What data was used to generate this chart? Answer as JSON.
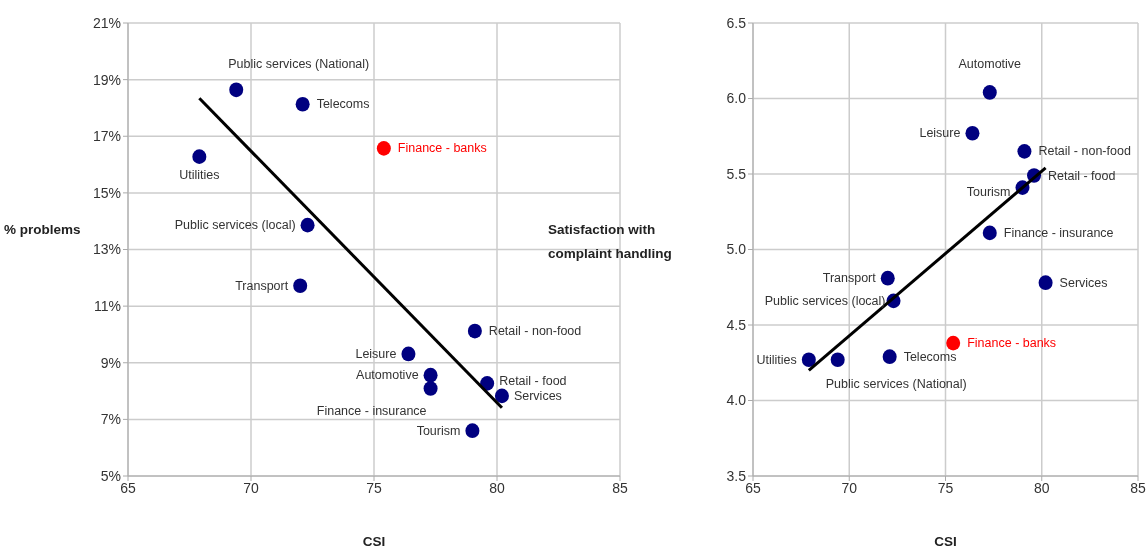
{
  "chart_data": [
    {
      "type": "scatter",
      "xlabel": "CSI",
      "ylabel": "% problems",
      "xlim": [
        65,
        85
      ],
      "xticks": [
        65,
        70,
        75,
        80,
        85
      ],
      "ylim": [
        5,
        21
      ],
      "yticks": [
        {
          "value": 5,
          "label": "5%"
        },
        {
          "value": 7,
          "label": "7%"
        },
        {
          "value": 9,
          "label": "9%"
        },
        {
          "value": 11,
          "label": "11%"
        },
        {
          "value": 13,
          "label": "13%"
        },
        {
          "value": 15,
          "label": "15%"
        },
        {
          "value": 17,
          "label": "17%"
        },
        {
          "value": 19,
          "label": "19%"
        },
        {
          "value": 21,
          "label": "21%"
        }
      ],
      "grid": true,
      "series": [
        {
          "marker": "circle",
          "x": [
            69.4,
            72.1,
            75.4,
            67.9,
            72.3,
            72.0,
            79.1,
            76.4,
            77.3,
            77.3,
            79.6,
            80.2,
            79.0
          ],
          "values": [
            18.64,
            18.13,
            16.57,
            16.28,
            13.86,
            11.72,
            10.12,
            9.31,
            8.56,
            8.09,
            8.27,
            7.83,
            6.6
          ],
          "colors": [
            "#000080",
            "#000080",
            "#ff0000",
            "#000080",
            "#000080",
            "#000080",
            "#000080",
            "#000080",
            "#000080",
            "#000080",
            "#000080",
            "#000080",
            "#000080"
          ]
        },
        {
          "type": "line",
          "x": [
            67.9,
            80.2
          ],
          "values": [
            18.34,
            7.41
          ],
          "color": "#000000"
        }
      ],
      "annotations": [
        {
          "text": "Public services (National)",
          "x": 69.4,
          "y": 18.64
        },
        {
          "text": "Telecoms",
          "x": 72.1,
          "y": 18.13
        },
        {
          "text": "Finance - banks",
          "x": 75.4,
          "y": 16.57
        },
        {
          "text": "Utilities",
          "x": 67.9,
          "y": 16.28
        },
        {
          "text": "Public services (local)",
          "x": 72.3,
          "y": 13.86
        },
        {
          "text": "Transport",
          "x": 72.0,
          "y": 11.72
        },
        {
          "text": "Retail - non-food",
          "x": 79.1,
          "y": 10.12
        },
        {
          "text": "Leisure",
          "x": 76.4,
          "y": 9.31
        },
        {
          "text": "Automotive",
          "x": 77.3,
          "y": 8.56
        },
        {
          "text": "Finance - insurance",
          "x": 77.3,
          "y": 8.09
        },
        {
          "text": "Retail - food",
          "x": 79.6,
          "y": 8.27
        },
        {
          "text": "Services",
          "x": 80.2,
          "y": 7.83
        },
        {
          "text": "Tourism",
          "x": 79.0,
          "y": 6.6
        }
      ]
    },
    {
      "type": "scatter",
      "xlabel": "CSI",
      "ylabel": "Satisfaction with complaint handling",
      "xlim": [
        65,
        85
      ],
      "xticks": [
        65,
        70,
        75,
        80,
        85
      ],
      "ylim": [
        3.5,
        6.5
      ],
      "yticks": [
        3.5,
        {
          "value": 4,
          "label": "4.0"
        },
        4.5,
        {
          "value": 5,
          "label": "5.0"
        },
        5.5,
        {
          "value": 6,
          "label": "6.0"
        },
        6.5
      ],
      "grid": true,
      "series": [
        {
          "marker": "circle",
          "x": [
            69.4,
            72.1,
            75.4,
            67.9,
            72.3,
            72.0,
            79.1,
            76.4,
            77.3,
            77.3,
            79.6,
            80.2,
            79.0
          ],
          "values": [
            4.27,
            4.29,
            4.38,
            4.27,
            4.66,
            4.81,
            5.65,
            5.77,
            6.04,
            5.11,
            5.49,
            4.78,
            5.41
          ],
          "colors": [
            "#000080",
            "#000080",
            "#ff0000",
            "#000080",
            "#000080",
            "#000080",
            "#000080",
            "#000080",
            "#000080",
            "#000080",
            "#000080",
            "#000080",
            "#000080"
          ]
        },
        {
          "type": "line",
          "x": [
            67.9,
            80.2
          ],
          "values": [
            4.2,
            5.54
          ],
          "color": "#000000"
        }
      ],
      "annotations": [
        {
          "text": "Public services (National)",
          "x": 69.4,
          "y": 4.27
        },
        {
          "text": "Telecoms",
          "x": 72.1,
          "y": 4.29
        },
        {
          "text": "Finance - banks",
          "x": 75.4,
          "y": 4.38
        },
        {
          "text": "Utilities",
          "x": 67.9,
          "y": 4.27
        },
        {
          "text": "Public services (local)",
          "x": 72.3,
          "y": 4.66
        },
        {
          "text": "Transport",
          "x": 72.0,
          "y": 4.81
        },
        {
          "text": "Retail - non-food",
          "x": 79.1,
          "y": 5.65
        },
        {
          "text": "Leisure",
          "x": 76.4,
          "y": 5.77
        },
        {
          "text": "Automotive",
          "x": 77.3,
          "y": 6.04
        },
        {
          "text": "Finance - insurance",
          "x": 77.3,
          "y": 5.11
        },
        {
          "text": "Retail - food",
          "x": 79.6,
          "y": 5.49
        },
        {
          "text": "Services",
          "x": 80.2,
          "y": 4.78
        },
        {
          "text": "Tourism",
          "x": 79.0,
          "y": 5.41
        }
      ]
    }
  ]
}
